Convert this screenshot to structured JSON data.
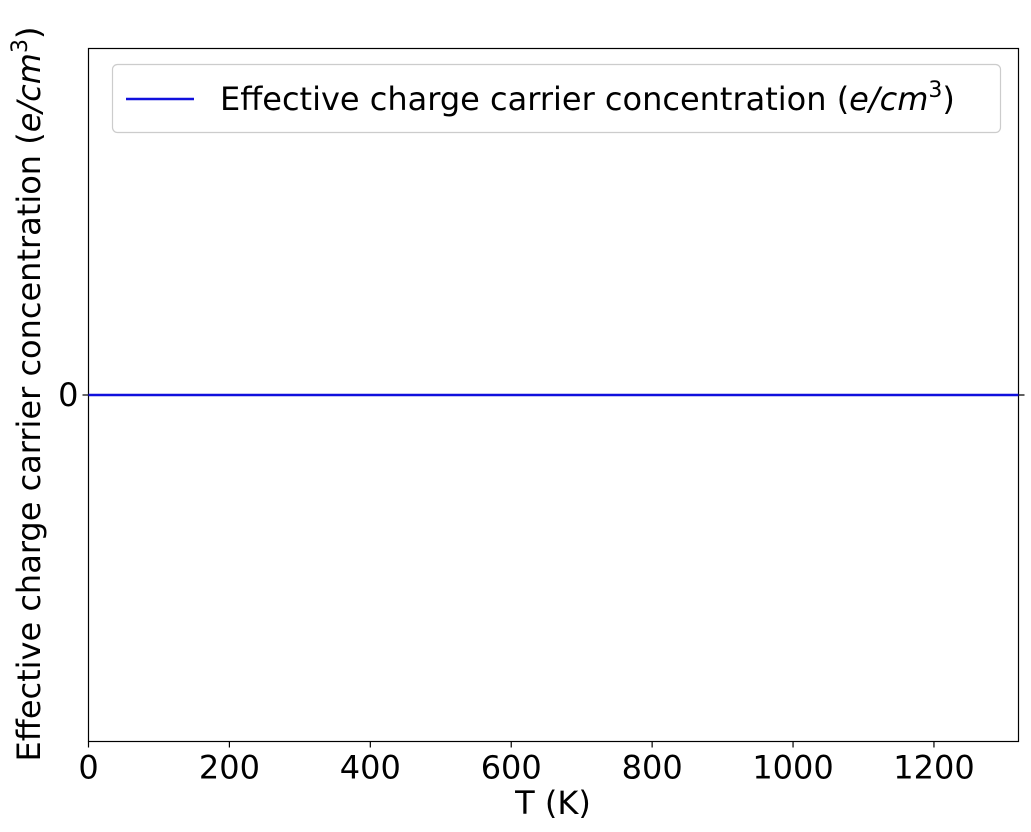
{
  "chart_data": {
    "type": "line",
    "xlabel": "T (K)",
    "ylabel": {
      "prefix": "Effective charge carrier concentration (",
      "math": "e/cm",
      "sup": "3",
      "suffix": ")"
    },
    "xlim": [
      0,
      1320
    ],
    "ylim": [
      -1,
      1
    ],
    "x_ticks": [
      0,
      200,
      400,
      600,
      800,
      1000,
      1200
    ],
    "x_tick_labels": [
      "0",
      "200",
      "400",
      "600",
      "800",
      "1000",
      "1200"
    ],
    "y_ticks": [
      0
    ],
    "y_tick_labels": [
      "0"
    ],
    "grid": false,
    "legend_position": "top-right",
    "series": [
      {
        "name": {
          "prefix": "Effective charge carrier concentration (",
          "math": "e/cm",
          "sup": "3",
          "suffix": ")"
        },
        "color": "#1010dd",
        "x": [
          0,
          1320
        ],
        "y": [
          0,
          0
        ]
      }
    ],
    "zero_reference_line": {
      "y": 0,
      "color": "#000000"
    }
  }
}
